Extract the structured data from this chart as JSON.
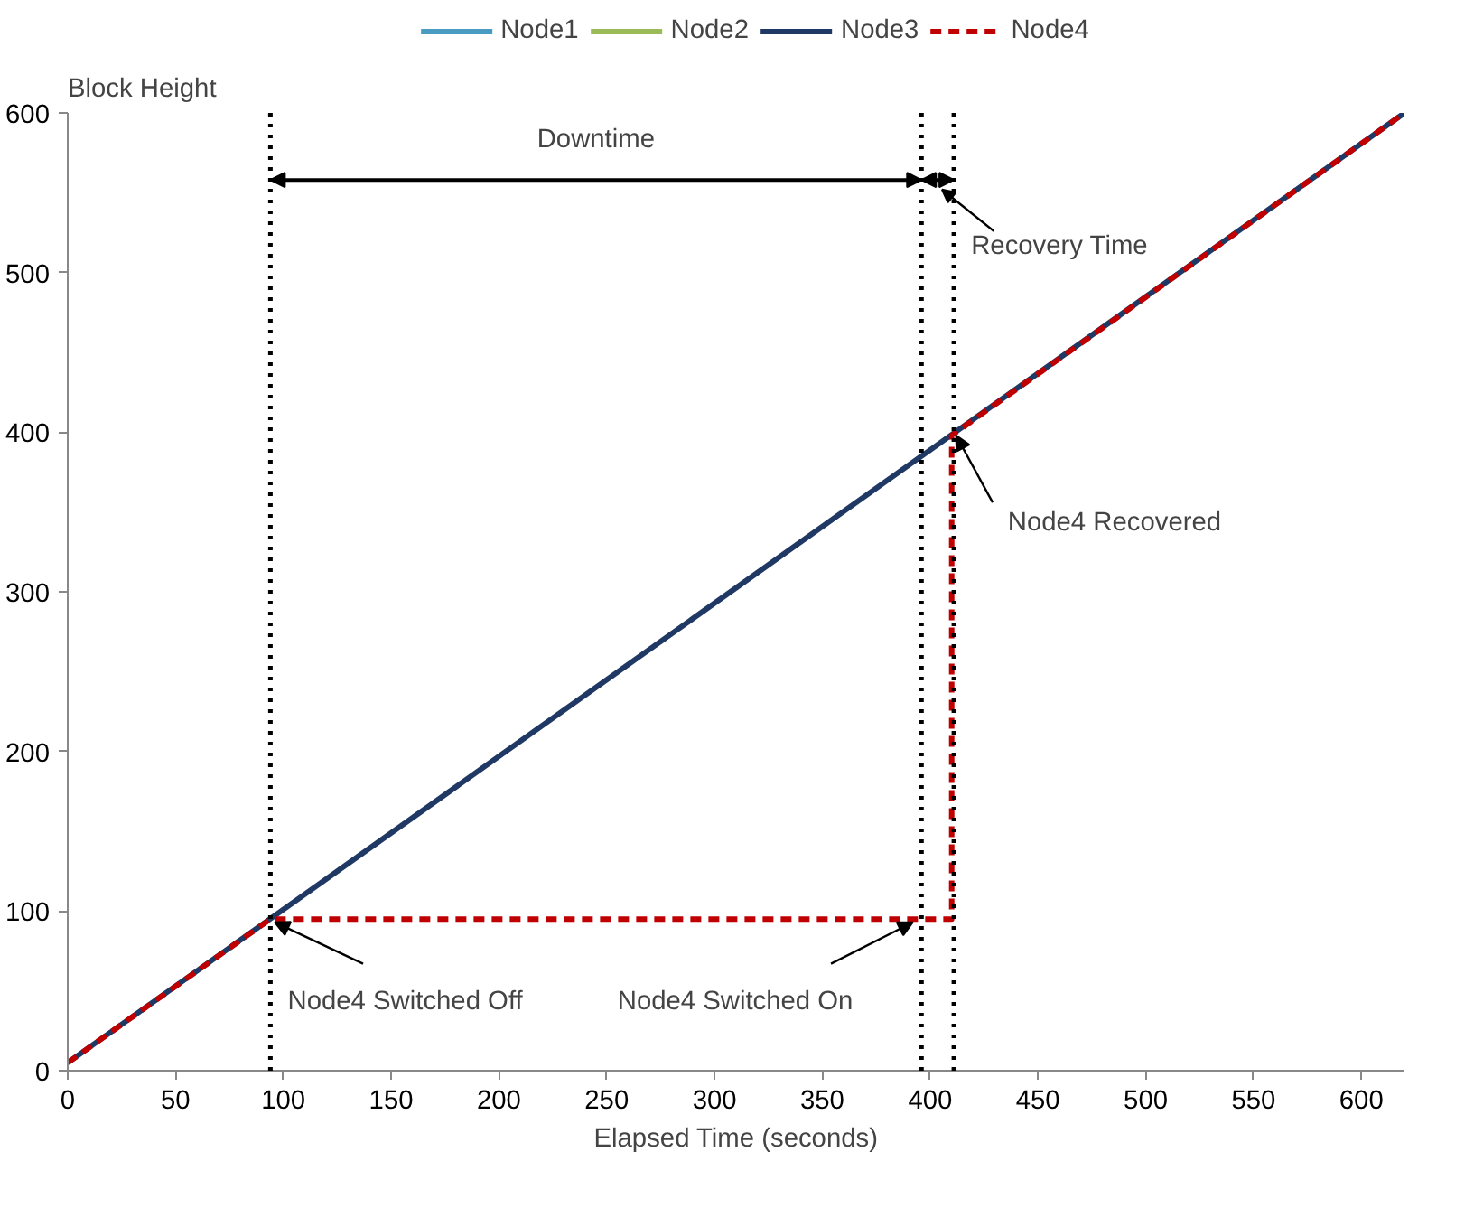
{
  "chart_data": {
    "type": "line",
    "xlabel": "Elapsed Time (seconds)",
    "ylabel": "Block Height",
    "xlim": [
      0,
      620
    ],
    "ylim": [
      0,
      600
    ],
    "xticks": [
      0,
      50,
      100,
      150,
      200,
      250,
      300,
      350,
      400,
      450,
      500,
      550,
      600
    ],
    "yticks": [
      0,
      100,
      200,
      300,
      400,
      500,
      600
    ],
    "grid": false,
    "legend": "top",
    "marker": "none",
    "series": [
      {
        "name": "Node1",
        "color": "#4a9bc1",
        "line_style": "solid",
        "values": [
          null
        ]
      },
      {
        "name": "Node2",
        "color": "#9bbb59",
        "line_style": "solid",
        "values": [
          null
        ]
      },
      {
        "name": "Node3",
        "color": "#1f3864",
        "line_style": "solid",
        "x": [
          0,
          620
        ],
        "values": [
          5,
          600
        ]
      },
      {
        "name": "Node4",
        "color": "#c00000",
        "line_style": "dashed",
        "x": [
          0,
          94,
          410,
          410,
          620
        ],
        "values": [
          5,
          95,
          95,
          398,
          600
        ]
      }
    ],
    "ref_lines": [
      {
        "axis": "x",
        "value": 94,
        "color": "#000000",
        "line_style": "dotted"
      },
      {
        "axis": "x",
        "value": 396,
        "color": "#000000",
        "line_style": "dotted"
      },
      {
        "axis": "x",
        "value": 411,
        "color": "#000000",
        "line_style": "dotted"
      }
    ],
    "annotations": [
      {
        "text": "Node4 Switched Off",
        "x": 96,
        "y": 95
      },
      {
        "text": "Node4 Switched On",
        "x": 392,
        "y": 95
      },
      {
        "text": "Node4 Recovered",
        "x": 412,
        "y": 400
      },
      "Downtime",
      "Recovery Time"
    ]
  }
}
